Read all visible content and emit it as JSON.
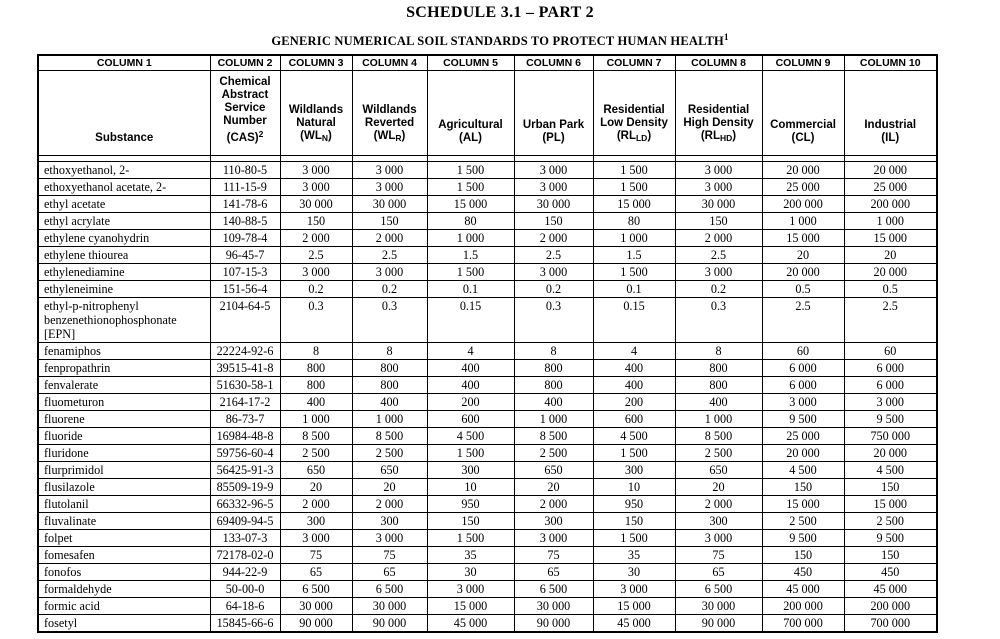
{
  "title": "SCHEDULE 3.1 – PART 2",
  "subtitle": {
    "text": "GENERIC NUMERICAL SOIL STANDARDS TO PROTECT HUMAN HEALTH",
    "footnote": "1"
  },
  "table": {
    "columns": [
      {
        "column_label": "COLUMN 1",
        "name_lines": [
          "Substance"
        ],
        "abbr_pre": "",
        "abbr_sub": "",
        "abbr_sup": "",
        "abbr_post": ""
      },
      {
        "column_label": "COLUMN 2",
        "name_lines": [
          "Chemical",
          "Abstract",
          "Service",
          "Number"
        ],
        "abbr_pre": "(CAS)",
        "abbr_sub": "",
        "abbr_sup": "2",
        "abbr_post": ""
      },
      {
        "column_label": "COLUMN 3",
        "name_lines": [
          "Wildlands",
          "Natural"
        ],
        "abbr_pre": "(WL",
        "abbr_sub": "N",
        "abbr_sup": "",
        "abbr_post": ")"
      },
      {
        "column_label": "COLUMN 4",
        "name_lines": [
          "Wildlands",
          "Reverted"
        ],
        "abbr_pre": "(WL",
        "abbr_sub": "R",
        "abbr_sup": "",
        "abbr_post": ")"
      },
      {
        "column_label": "COLUMN 5",
        "name_lines": [
          "Agricultural"
        ],
        "abbr_pre": "(AL)",
        "abbr_sub": "",
        "abbr_sup": "",
        "abbr_post": ""
      },
      {
        "column_label": "COLUMN 6",
        "name_lines": [
          "Urban Park"
        ],
        "abbr_pre": "(PL)",
        "abbr_sub": "",
        "abbr_sup": "",
        "abbr_post": ""
      },
      {
        "column_label": "COLUMN 7",
        "name_lines": [
          "Residential",
          "Low Density"
        ],
        "abbr_pre": "(RL",
        "abbr_sub": "LD",
        "abbr_sup": "",
        "abbr_post": ")"
      },
      {
        "column_label": "COLUMN 8",
        "name_lines": [
          "Residential",
          "High Density"
        ],
        "abbr_pre": "(RL",
        "abbr_sub": "HD",
        "abbr_sup": "",
        "abbr_post": ")"
      },
      {
        "column_label": "COLUMN 9",
        "name_lines": [
          "Commercial"
        ],
        "abbr_pre": "(CL)",
        "abbr_sub": "",
        "abbr_sup": "",
        "abbr_post": ""
      },
      {
        "column_label": "COLUMN 10",
        "name_lines": [
          "Industrial"
        ],
        "abbr_pre": "(IL)",
        "abbr_sub": "",
        "abbr_sup": "",
        "abbr_post": ""
      }
    ],
    "rows": [
      {
        "substance": "ethoxyethanol, 2-",
        "cas": "110-80-5",
        "values": [
          "3 000",
          "3 000",
          "1 500",
          "3 000",
          "1 500",
          "3 000",
          "20 000",
          "20 000"
        ]
      },
      {
        "substance": "ethoxyethanol acetate, 2-",
        "cas": "111-15-9",
        "values": [
          "3 000",
          "3 000",
          "1 500",
          "3 000",
          "1 500",
          "3 000",
          "25 000",
          "25 000"
        ]
      },
      {
        "substance": "ethyl acetate",
        "cas": "141-78-6",
        "values": [
          "30 000",
          "30 000",
          "15 000",
          "30 000",
          "15 000",
          "30 000",
          "200 000",
          "200 000"
        ]
      },
      {
        "substance": "ethyl acrylate",
        "cas": "140-88-5",
        "values": [
          "150",
          "150",
          "80",
          "150",
          "80",
          "150",
          "1 000",
          "1 000"
        ]
      },
      {
        "substance": "ethylene cyanohydrin",
        "cas": "109-78-4",
        "values": [
          "2 000",
          "2 000",
          "1 000",
          "2 000",
          "1 000",
          "2 000",
          "15 000",
          "15 000"
        ]
      },
      {
        "substance": "ethylene thiourea",
        "cas": "96-45-7",
        "values": [
          "2.5",
          "2.5",
          "1.5",
          "2.5",
          "1.5",
          "2.5",
          "20",
          "20"
        ]
      },
      {
        "substance": "ethylenediamine",
        "cas": "107-15-3",
        "values": [
          "3 000",
          "3 000",
          "1 500",
          "3 000",
          "1 500",
          "3 000",
          "20 000",
          "20 000"
        ]
      },
      {
        "substance": "ethyleneimine",
        "cas": "151-56-4",
        "values": [
          "0.2",
          "0.2",
          "0.1",
          "0.2",
          "0.1",
          "0.2",
          "0.5",
          "0.5"
        ]
      },
      {
        "substance": "ethyl-p-nitrophenyl benzenethionophosphonate [EPN]",
        "cas": "2104-64-5",
        "values": [
          "0.3",
          "0.3",
          "0.15",
          "0.3",
          "0.15",
          "0.3",
          "2.5",
          "2.5"
        ]
      },
      {
        "substance": "fenamiphos",
        "cas": "22224-92-6",
        "values": [
          "8",
          "8",
          "4",
          "8",
          "4",
          "8",
          "60",
          "60"
        ]
      },
      {
        "substance": "fenpropathrin",
        "cas": "39515-41-8",
        "values": [
          "800",
          "800",
          "400",
          "800",
          "400",
          "800",
          "6 000",
          "6 000"
        ]
      },
      {
        "substance": "fenvalerate",
        "cas": "51630-58-1",
        "values": [
          "800",
          "800",
          "400",
          "800",
          "400",
          "800",
          "6 000",
          "6 000"
        ]
      },
      {
        "substance": "fluometuron",
        "cas": "2164-17-2",
        "values": [
          "400",
          "400",
          "200",
          "400",
          "200",
          "400",
          "3 000",
          "3 000"
        ]
      },
      {
        "substance": "fluorene",
        "cas": "86-73-7",
        "values": [
          "1 000",
          "1 000",
          "600",
          "1 000",
          "600",
          "1 000",
          "9 500",
          "9 500"
        ]
      },
      {
        "substance": "fluoride",
        "cas": "16984-48-8",
        "values": [
          "8 500",
          "8 500",
          "4 500",
          "8 500",
          "4 500",
          "8 500",
          "25 000",
          "750 000"
        ]
      },
      {
        "substance": "fluridone",
        "cas": "59756-60-4",
        "values": [
          "2 500",
          "2 500",
          "1 500",
          "2 500",
          "1 500",
          "2 500",
          "20 000",
          "20 000"
        ]
      },
      {
        "substance": "flurprimidol",
        "cas": "56425-91-3",
        "values": [
          "650",
          "650",
          "300",
          "650",
          "300",
          "650",
          "4 500",
          "4 500"
        ]
      },
      {
        "substance": "flusilazole",
        "cas": "85509-19-9",
        "values": [
          "20",
          "20",
          "10",
          "20",
          "10",
          "20",
          "150",
          "150"
        ]
      },
      {
        "substance": "flutolanil",
        "cas": "66332-96-5",
        "values": [
          "2 000",
          "2 000",
          "950",
          "2 000",
          "950",
          "2 000",
          "15 000",
          "15 000"
        ]
      },
      {
        "substance": "fluvalinate",
        "cas": "69409-94-5",
        "values": [
          "300",
          "300",
          "150",
          "300",
          "150",
          "300",
          "2 500",
          "2 500"
        ]
      },
      {
        "substance": "folpet",
        "cas": "133-07-3",
        "values": [
          "3 000",
          "3 000",
          "1 500",
          "3 000",
          "1 500",
          "3 000",
          "9 500",
          "9 500"
        ]
      },
      {
        "substance": "fomesafen",
        "cas": "72178-02-0",
        "values": [
          "75",
          "75",
          "35",
          "75",
          "35",
          "75",
          "150",
          "150"
        ]
      },
      {
        "substance": "fonofos",
        "cas": "944-22-9",
        "values": [
          "65",
          "65",
          "30",
          "65",
          "30",
          "65",
          "450",
          "450"
        ]
      },
      {
        "substance": "formaldehyde",
        "cas": "50-00-0",
        "values": [
          "6 500",
          "6 500",
          "3 000",
          "6 500",
          "3 000",
          "6 500",
          "45 000",
          "45 000"
        ]
      },
      {
        "substance": "formic acid",
        "cas": "64-18-6",
        "values": [
          "30 000",
          "30 000",
          "15 000",
          "30 000",
          "15 000",
          "30 000",
          "200 000",
          "200 000"
        ]
      },
      {
        "substance": "fosetyl",
        "cas": "15845-66-6",
        "values": [
          "90 000",
          "90 000",
          "45 000",
          "90 000",
          "45 000",
          "90 000",
          "700 000",
          "700 000"
        ]
      }
    ]
  }
}
